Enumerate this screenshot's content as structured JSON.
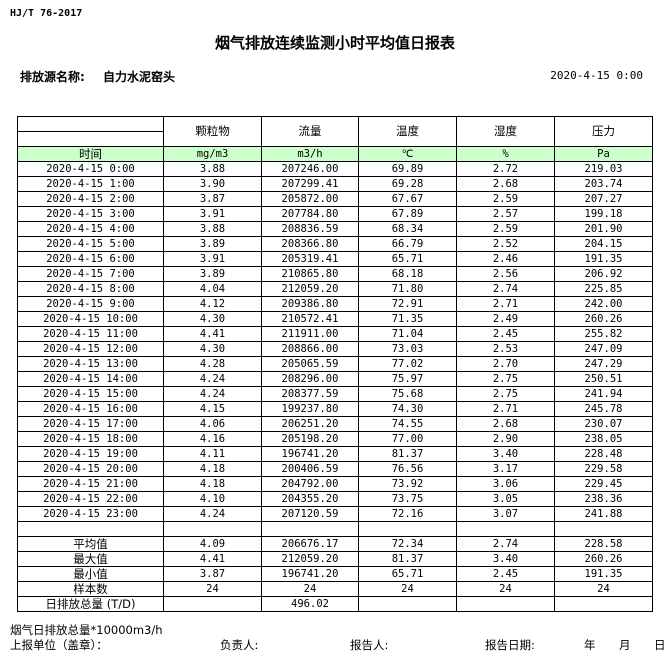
{
  "standard": "HJ/T  76-2017",
  "title": "烟气排放连续监测小时平均值日报表",
  "source_label": "排放源名称:",
  "source_value": "自力水泥窑头",
  "report_datetime": "2020-4-15 0:00",
  "table": {
    "columns": [
      "颗粒物",
      "流量",
      "温度",
      "湿度",
      "压力"
    ],
    "time_header": "时间",
    "units": [
      "mg/m3",
      "m3/h",
      "℃",
      "%",
      "Pa"
    ],
    "unit_row_color": "#ccffcc",
    "rows": [
      [
        "2020-4-15 0:00",
        "3.88",
        "207246.00",
        "69.89",
        "2.72",
        "219.03"
      ],
      [
        "2020-4-15 1:00",
        "3.90",
        "207299.41",
        "69.28",
        "2.68",
        "203.74"
      ],
      [
        "2020-4-15 2:00",
        "3.87",
        "205872.00",
        "67.67",
        "2.59",
        "207.27"
      ],
      [
        "2020-4-15 3:00",
        "3.91",
        "207784.80",
        "67.89",
        "2.57",
        "199.18"
      ],
      [
        "2020-4-15 4:00",
        "3.88",
        "208836.59",
        "68.34",
        "2.59",
        "201.90"
      ],
      [
        "2020-4-15 5:00",
        "3.89",
        "208366.80",
        "66.79",
        "2.52",
        "204.15"
      ],
      [
        "2020-4-15 6:00",
        "3.91",
        "205319.41",
        "65.71",
        "2.46",
        "191.35"
      ],
      [
        "2020-4-15 7:00",
        "3.89",
        "210865.80",
        "68.18",
        "2.56",
        "206.92"
      ],
      [
        "2020-4-15 8:00",
        "4.04",
        "212059.20",
        "71.80",
        "2.74",
        "225.85"
      ],
      [
        "2020-4-15 9:00",
        "4.12",
        "209386.80",
        "72.91",
        "2.71",
        "242.00"
      ],
      [
        "2020-4-15 10:00",
        "4.30",
        "210572.41",
        "71.35",
        "2.49",
        "260.26"
      ],
      [
        "2020-4-15 11:00",
        "4.41",
        "211911.00",
        "71.04",
        "2.45",
        "255.82"
      ],
      [
        "2020-4-15 12:00",
        "4.30",
        "208866.00",
        "73.03",
        "2.53",
        "247.09"
      ],
      [
        "2020-4-15 13:00",
        "4.28",
        "205065.59",
        "77.02",
        "2.70",
        "247.29"
      ],
      [
        "2020-4-15 14:00",
        "4.24",
        "208296.00",
        "75.97",
        "2.75",
        "250.51"
      ],
      [
        "2020-4-15 15:00",
        "4.24",
        "208377.59",
        "75.68",
        "2.75",
        "241.94"
      ],
      [
        "2020-4-15 16:00",
        "4.15",
        "199237.80",
        "74.30",
        "2.71",
        "245.78"
      ],
      [
        "2020-4-15 17:00",
        "4.06",
        "206251.20",
        "74.55",
        "2.68",
        "230.07"
      ],
      [
        "2020-4-15 18:00",
        "4.16",
        "205198.20",
        "77.00",
        "2.90",
        "238.05"
      ],
      [
        "2020-4-15 19:00",
        "4.11",
        "196741.20",
        "81.37",
        "3.40",
        "228.48"
      ],
      [
        "2020-4-15 20:00",
        "4.18",
        "200406.59",
        "76.56",
        "3.17",
        "229.58"
      ],
      [
        "2020-4-15 21:00",
        "4.18",
        "204792.00",
        "73.92",
        "3.06",
        "229.45"
      ],
      [
        "2020-4-15 22:00",
        "4.10",
        "204355.20",
        "73.75",
        "3.05",
        "238.36"
      ],
      [
        "2020-4-15 23:00",
        "4.24",
        "207120.59",
        "72.16",
        "3.07",
        "241.88"
      ]
    ],
    "summary": [
      [
        "平均值",
        "4.09",
        "206676.17",
        "72.34",
        "2.74",
        "228.58"
      ],
      [
        "最大值",
        "4.41",
        "212059.20",
        "81.37",
        "3.40",
        "260.26"
      ],
      [
        "最小值",
        "3.87",
        "196741.20",
        "65.71",
        "2.45",
        "191.35"
      ],
      [
        "样本数",
        "24",
        "24",
        "24",
        "24",
        "24"
      ],
      [
        "日排放总量 (T/D)",
        "",
        "496.02",
        "",
        "",
        ""
      ]
    ]
  },
  "footer": {
    "note": "烟气日排放总量*10000m3/h",
    "unit_label": "上报单位（盖章）：",
    "responsible_label": "负责人:",
    "reporter_label": "报告人:",
    "report_date_label": "报告日期:",
    "year": "年",
    "month": "月",
    "day": "日"
  }
}
